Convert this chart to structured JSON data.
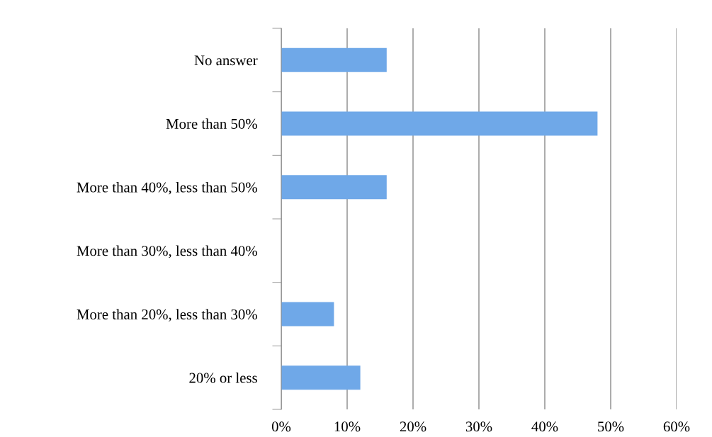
{
  "chart_data": {
    "type": "bar",
    "orientation": "horizontal",
    "categories": [
      "No answer",
      "More than 50%",
      "More than 40%, less than 50%",
      "More than 30%, less than 40%",
      "More than 20%, less than 30%",
      "20% or less"
    ],
    "values": [
      16,
      48,
      16,
      0,
      8,
      12
    ],
    "color": "#6fa8e8",
    "xlim": [
      0,
      60
    ],
    "xticks": [
      {
        "value": 0,
        "label": "0%"
      },
      {
        "value": 10,
        "label": "10%"
      },
      {
        "value": 20,
        "label": "20%"
      },
      {
        "value": 30,
        "label": "30%"
      },
      {
        "value": 40,
        "label": "40%"
      },
      {
        "value": 50,
        "label": "50%"
      },
      {
        "value": 60,
        "label": "60%"
      }
    ],
    "grid": "x",
    "legend": false
  }
}
